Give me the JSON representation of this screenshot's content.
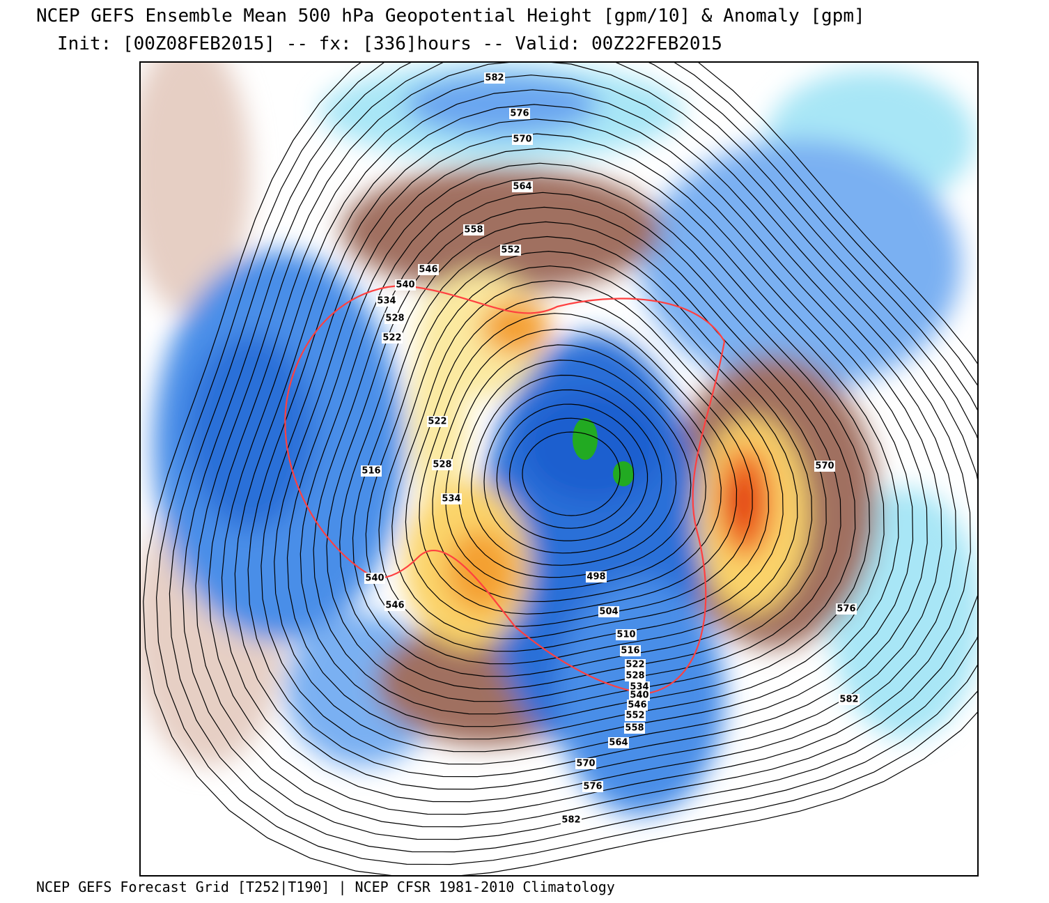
{
  "header": {
    "title": "NCEP GEFS Ensemble Mean 500 hPa Geopotential Height [gpm/10] & Anomaly [gpm]",
    "subtitle": "Init: [00Z08FEB2015] -- fx: [336]hours -- Valid: 00Z22FEB2015"
  },
  "map": {
    "contour_labels": [
      "582",
      "576",
      "570",
      "564",
      "558",
      "552",
      "546",
      "540",
      "534",
      "528",
      "522",
      "522",
      "516",
      "528",
      "534",
      "540",
      "546",
      "498",
      "504",
      "510",
      "516",
      "522",
      "528",
      "534",
      "540",
      "546",
      "552",
      "558",
      "564",
      "570",
      "576",
      "582",
      "570",
      "576",
      "582"
    ]
  },
  "footer": {
    "text": "NCEP GEFS Forecast Grid [T252|T190] | NCEP CFSR 1981-2010 Climatology"
  }
}
